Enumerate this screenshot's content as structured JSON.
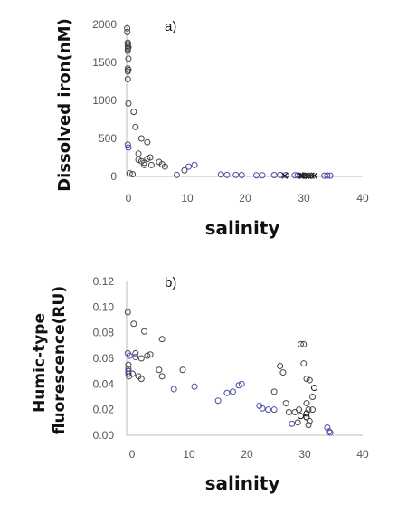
{
  "chart_data": [
    {
      "type": "scatter",
      "panel_label": "a)",
      "xlabel": "salinity",
      "ylabel": "Dissolved iron(nM)",
      "xlim": [
        0,
        40
      ],
      "ylim": [
        0,
        2000
      ],
      "x_ticks": [
        "0",
        "10",
        "20",
        "30",
        "40"
      ],
      "y_ticks": [
        "0",
        "500",
        "1000",
        "1500",
        "2000"
      ],
      "grid": false,
      "series": [
        {
          "marker": "circle",
          "color": "#444444",
          "points": [
            [
              0.1,
              1950
            ],
            [
              0.1,
              1900
            ],
            [
              0.2,
              1760
            ],
            [
              0.2,
              1740
            ],
            [
              0.2,
              1720
            ],
            [
              0.3,
              1700
            ],
            [
              0.2,
              1680
            ],
            [
              0.2,
              1650
            ],
            [
              0.3,
              1550
            ],
            [
              0.2,
              1420
            ],
            [
              0.3,
              1400
            ],
            [
              0.2,
              1380
            ],
            [
              0.2,
              1280
            ],
            [
              0.3,
              960
            ],
            [
              1.2,
              850
            ],
            [
              1.5,
              650
            ],
            [
              3.5,
              450
            ],
            [
              2.5,
              500
            ],
            [
              2,
              300
            ],
            [
              2,
              220
            ],
            [
              2.5,
              200
            ],
            [
              3,
              180
            ],
            [
              3.5,
              230
            ],
            [
              4,
              250
            ],
            [
              4.2,
              150
            ],
            [
              3,
              150
            ],
            [
              5.5,
              190
            ],
            [
              6,
              160
            ],
            [
              6.5,
              130
            ],
            [
              9.8,
              80
            ],
            [
              0.5,
              40
            ],
            [
              1,
              30
            ]
          ]
        },
        {
          "marker": "circle",
          "color": "#4a4aa8",
          "points": [
            [
              0.2,
              420
            ],
            [
              0.3,
              380
            ],
            [
              8.5,
              20
            ],
            [
              11.5,
              150
            ],
            [
              10.5,
              130
            ],
            [
              16,
              25
            ],
            [
              17,
              20
            ],
            [
              18.5,
              20
            ],
            [
              19.5,
              18
            ],
            [
              22,
              15
            ],
            [
              23,
              15
            ],
            [
              25,
              18
            ],
            [
              26,
              20
            ],
            [
              27,
              18
            ],
            [
              28.5,
              15
            ],
            [
              29,
              15
            ],
            [
              30,
              12
            ],
            [
              33.5,
              10
            ],
            [
              34,
              12
            ],
            [
              34.5,
              10
            ]
          ]
        },
        {
          "marker": "cross",
          "color": "#222222",
          "points": [
            [
              26.8,
              10
            ],
            [
              29.5,
              10
            ],
            [
              30.3,
              12
            ],
            [
              30.8,
              8
            ],
            [
              31.3,
              10
            ],
            [
              31.8,
              10
            ],
            [
              29.8,
              8
            ]
          ]
        }
      ]
    },
    {
      "type": "scatter",
      "panel_label": "b)",
      "xlabel": "salinity",
      "ylabel": "Humic-type fluorescence(RU)",
      "xlim": [
        0,
        40
      ],
      "ylim": [
        0,
        0.12
      ],
      "x_ticks": [
        "0",
        "10",
        "20",
        "30",
        "40"
      ],
      "y_ticks": [
        "0.00",
        "0.02",
        "0.04",
        "0.06",
        "0.08",
        "0.10",
        "0.12"
      ],
      "grid": false,
      "series": [
        {
          "marker": "circle",
          "color": "#444444",
          "points": [
            [
              0.2,
              0.096
            ],
            [
              1.2,
              0.087
            ],
            [
              3,
              0.081
            ],
            [
              6,
              0.075
            ],
            [
              1.5,
              0.064
            ],
            [
              2.5,
              0.06
            ],
            [
              3.5,
              0.062
            ],
            [
              4,
              0.063
            ],
            [
              0.3,
              0.055
            ],
            [
              0.3,
              0.052
            ],
            [
              0.3,
              0.05
            ],
            [
              0.3,
              0.048
            ],
            [
              0.4,
              0.046
            ],
            [
              1,
              0.048
            ],
            [
              2,
              0.046
            ],
            [
              2.5,
              0.044
            ],
            [
              5.5,
              0.051
            ],
            [
              6,
              0.046
            ],
            [
              9.5,
              0.051
            ],
            [
              26,
              0.054
            ],
            [
              26.5,
              0.049
            ],
            [
              25,
              0.034
            ],
            [
              27,
              0.025
            ],
            [
              29.5,
              0.071
            ],
            [
              30,
              0.071
            ],
            [
              30,
              0.056
            ],
            [
              30.5,
              0.044
            ],
            [
              31,
              0.043
            ],
            [
              31.5,
              0.03
            ],
            [
              31.5,
              0.02
            ],
            [
              30.5,
              0.025
            ],
            [
              30.8,
              0.02
            ],
            [
              29.2,
              0.02
            ],
            [
              28.5,
              0.018
            ],
            [
              27.5,
              0.018
            ],
            [
              29,
              0.01
            ],
            [
              31,
              0.011
            ],
            [
              30.8,
              0.008
            ]
          ]
        },
        {
          "marker": "circle",
          "color": "#4a4aa8",
          "points": [
            [
              0.2,
              0.064
            ],
            [
              0.5,
              0.062
            ],
            [
              1.5,
              0.061
            ],
            [
              0.3,
              0.05
            ],
            [
              8,
              0.036
            ],
            [
              11.5,
              0.038
            ],
            [
              15.5,
              0.027
            ],
            [
              17,
              0.033
            ],
            [
              18,
              0.034
            ],
            [
              19,
              0.039
            ],
            [
              19.5,
              0.04
            ],
            [
              22.5,
              0.023
            ],
            [
              23,
              0.021
            ],
            [
              24,
              0.02
            ],
            [
              25,
              0.02
            ],
            [
              28,
              0.009
            ],
            [
              34,
              0.006
            ],
            [
              34.3,
              0.003
            ],
            [
              34.5,
              0.002
            ]
          ]
        },
        {
          "marker": "circle",
          "color": "#111111",
          "points": [
            [
              31.8,
              0.037
            ],
            [
              29.5,
              0.015
            ],
            [
              30.5,
              0.017
            ],
            [
              30.5,
              0.014
            ]
          ]
        }
      ]
    }
  ]
}
